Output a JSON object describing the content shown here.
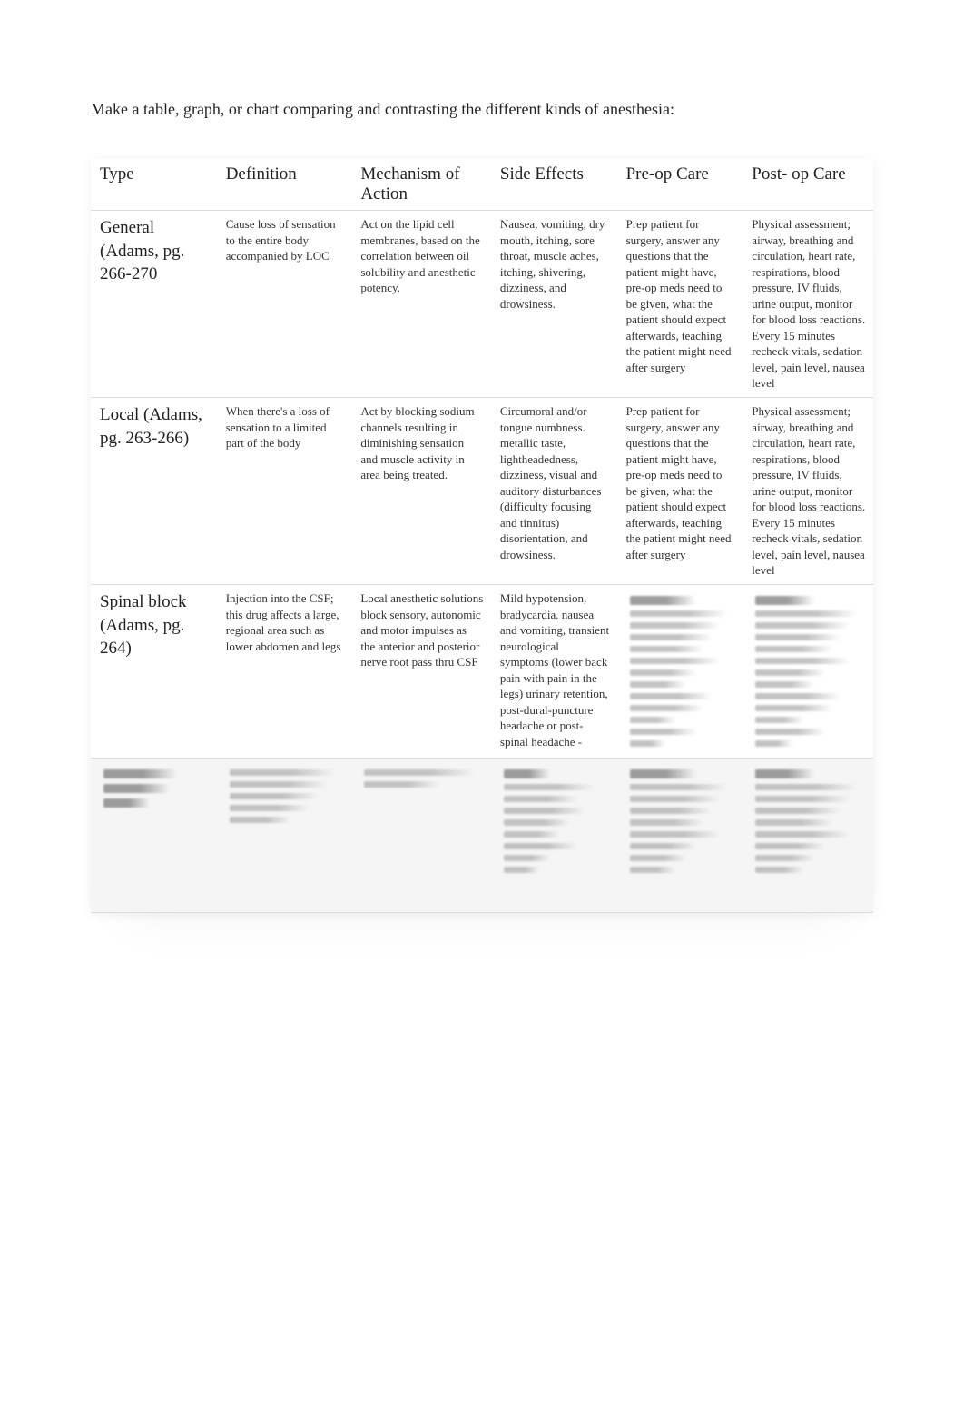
{
  "prompt": "Make a table, graph, or chart comparing and contrasting the different kinds of anesthesia:",
  "columns": [
    "Type",
    "Definition",
    "Mechanism of Action",
    "Side Effects",
    "Pre-op Care",
    "Post- op Care"
  ],
  "rows": [
    {
      "type": "General (Adams, pg. 266-270",
      "definition": "Cause loss of sensation to the entire body accompanied by LOC",
      "mechanism": "Act on the lipid cell membranes, based on the correlation between oil solubility and anesthetic potency.",
      "side_effects": "Nausea, vomiting, dry mouth, itching, sore throat, muscle aches, itching, shivering, dizziness, and drowsiness.",
      "preop": "Prep patient for surgery, answer any questions that the patient might have, pre-op meds need to be given, what the patient should expect afterwards, teaching the patient might need after surgery",
      "postop": "Physical assessment; airway, breathing and circulation, heart rate, respirations, blood pressure, IV fluids, urine output, monitor for blood loss reactions. Every 15 minutes recheck vitals, sedation level, pain level, nausea level"
    },
    {
      "type": "Local (Adams, pg. 263-266)",
      "definition": "When there's a loss of sensation to a limited part of the body",
      "mechanism": "Act by blocking sodium channels resulting in diminishing sensation and muscle activity in area being treated.",
      "side_effects": "Circumoral and/or tongue numbness. metallic taste, lightheadedness, dizziness, visual and auditory disturbances (difficulty focusing and tinnitus) disorientation, and drowsiness.",
      "preop": "Prep patient for surgery, answer any questions that the patient might have, pre-op meds need to be given, what the patient should expect afterwards, teaching the patient might need after surgery",
      "postop": "Physical assessment; airway, breathing and circulation, heart rate, respirations, blood pressure, IV fluids, urine output, monitor for blood loss reactions. Every 15 minutes recheck vitals, sedation level, pain level, nausea level"
    },
    {
      "type": "Spinal block (Adams, pg. 264)",
      "definition": "Injection into the CSF; this drug affects a large, regional area such as lower abdomen and legs",
      "mechanism": "Local anesthetic solutions block sensory, autonomic and motor impulses as the anterior and posterior nerve root pass thru CSF",
      "side_effects": "Mild hypotension, bradycardia. nausea and vomiting, transient neurological symptoms (lower back pain with pain in the legs) urinary retention, post-dural-puncture headache or post-spinal headache -",
      "preop": "",
      "postop": ""
    }
  ]
}
